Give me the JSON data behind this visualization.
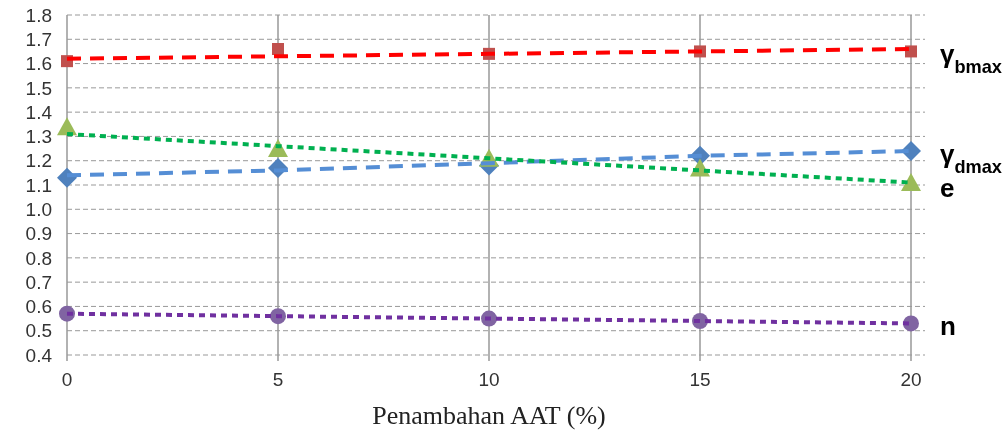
{
  "chart_data": {
    "type": "line",
    "xlabel": "Penambahan AAT (%)",
    "x": [
      0,
      5,
      10,
      15,
      20
    ],
    "xlim": [
      0,
      20
    ],
    "xticks": [
      0,
      5,
      10,
      15,
      20
    ],
    "ylim": [
      0.4,
      1.8
    ],
    "yticks": [
      {
        "value": 0.4,
        "label": "0.4"
      },
      {
        "value": 0.5,
        "label": "0.5"
      },
      {
        "value": 0.6,
        "label": "0.6"
      },
      {
        "value": 0.7,
        "label": "0.7"
      },
      {
        "value": 0.8,
        "label": "0.8"
      },
      {
        "value": 0.9,
        "label": "0.9"
      },
      {
        "value": 1.0,
        "label": "1.0"
      },
      {
        "value": 1.1,
        "label": "1.1"
      },
      {
        "value": 1.2,
        "label": "1.2"
      },
      {
        "value": 1.3,
        "label": "1.3"
      },
      {
        "value": 1.4,
        "label": "1.4"
      },
      {
        "value": 1.5,
        "label": "1.5"
      },
      {
        "value": 1.6,
        "label": "1.6"
      },
      {
        "value": 1.7,
        "label": "1.7"
      },
      {
        "value": 1.8,
        "label": "1.8"
      }
    ],
    "grid": true,
    "series": [
      {
        "values": [
          1.62,
          1.63,
          1.64,
          1.65,
          1.66
        ],
        "color": "#ff0000",
        "line_style": "dashed",
        "marker": "none"
      },
      {
        "values": [
          1.14,
          1.16,
          1.19,
          1.22,
          1.24
        ],
        "color": "#558ed5",
        "line_style": "dashed",
        "marker": "none"
      },
      {
        "values": [
          1.31,
          1.26,
          1.21,
          1.16,
          1.11
        ],
        "color": "#00b050",
        "line_style": "dotted",
        "marker": "none"
      },
      {
        "values": [
          0.57,
          0.56,
          0.55,
          0.54,
          0.53
        ],
        "color": "#7030a0",
        "line_style": "dotted",
        "marker": "none"
      },
      {
        "name": "γ$_{bmax}$",
        "type": "scatter",
        "values": [
          1.61,
          1.66,
          1.64,
          1.65,
          1.65
        ],
        "color": "#c0504d",
        "marker": "square"
      },
      {
        "name": "γ$_{dmax}$",
        "type": "scatter",
        "values": [
          1.13,
          1.17,
          1.18,
          1.22,
          1.24
        ],
        "color": "#4f81bd",
        "marker": "diamond"
      },
      {
        "name": "e",
        "type": "scatter",
        "values": [
          1.33,
          1.24,
          1.2,
          1.16,
          1.1
        ],
        "color": "#9bbb59",
        "marker": "triangle"
      },
      {
        "name": "n",
        "type": "scatter",
        "values": [
          0.57,
          0.56,
          0.55,
          0.54,
          0.53
        ],
        "color": "#8064a2",
        "marker": "circle"
      }
    ]
  }
}
